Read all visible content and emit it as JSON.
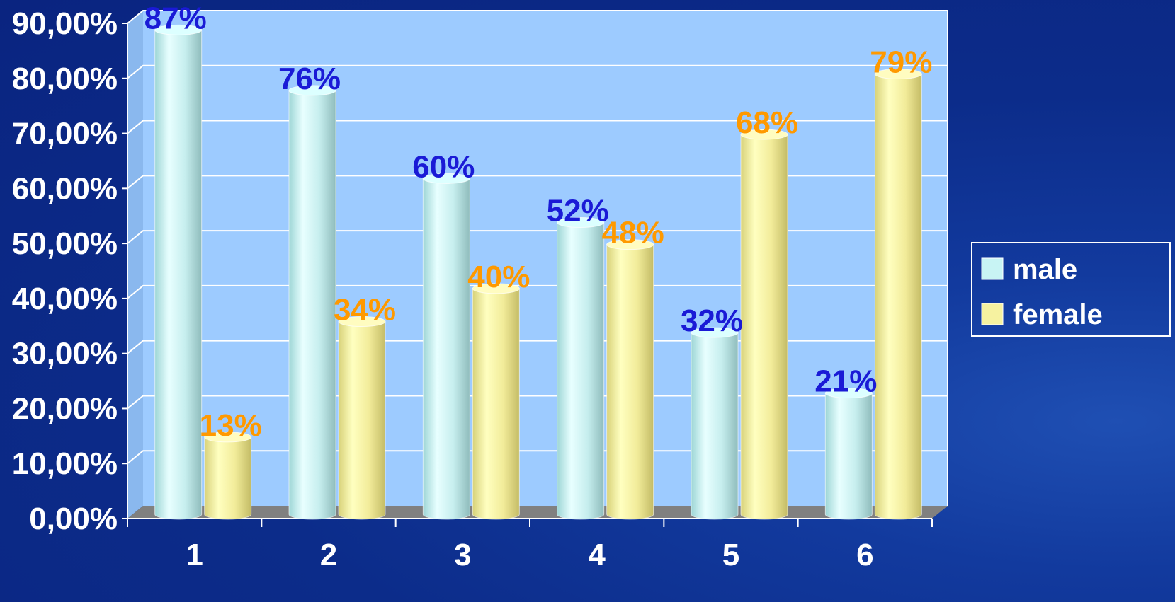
{
  "chart_data": {
    "type": "bar",
    "categories": [
      "1",
      "2",
      "3",
      "4",
      "5",
      "6"
    ],
    "series": [
      {
        "name": "male",
        "values": [
          87,
          76,
          60,
          52,
          32,
          21
        ],
        "labels": [
          "87%",
          "76%",
          "60%",
          "52%",
          "32%",
          "21%"
        ],
        "color": "#c8f4f4",
        "label_color": "#1a1ad6"
      },
      {
        "name": "female",
        "values": [
          13,
          34,
          40,
          48,
          68,
          79
        ],
        "labels": [
          "13%",
          "34%",
          "40%",
          "48%",
          "68%",
          "79%"
        ],
        "color": "#f6f2a0",
        "label_color": "#ff9900"
      }
    ],
    "yticks": [
      "0,00%",
      "10,00%",
      "20,00%",
      "30,00%",
      "40,00%",
      "50,00%",
      "60,00%",
      "70,00%",
      "80,00%",
      "90,00%"
    ],
    "ylim": [
      0,
      90
    ],
    "grid": true,
    "legend": "right",
    "colors": {
      "background": "#0c2c8a",
      "plot_back": "#9dcbff",
      "floor": "#808080",
      "grid": "#ffffff"
    }
  }
}
